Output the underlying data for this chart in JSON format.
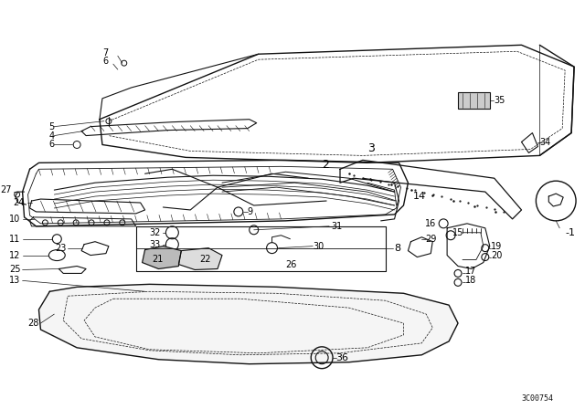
{
  "bg_color": "#ffffff",
  "line_color": "#111111",
  "diagram_id": "3C00754",
  "font_size": 7,
  "label_color": "#000000",
  "figsize": [
    6.4,
    4.48
  ],
  "dpi": 100
}
